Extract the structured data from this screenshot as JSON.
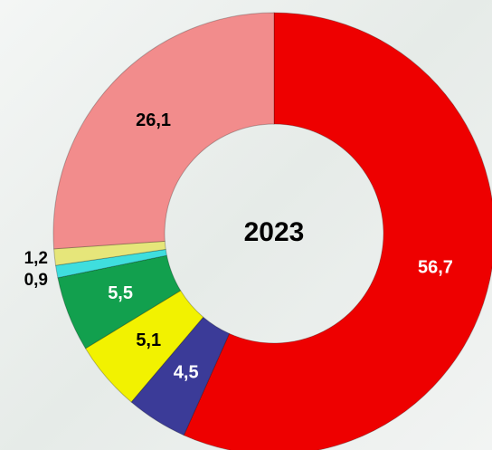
{
  "chart_data": {
    "type": "donut",
    "title": "2023",
    "categories": [
      null,
      null,
      null,
      null,
      null,
      null,
      null
    ],
    "values": [
      56.7,
      4.5,
      5.1,
      5.5,
      0.9,
      1.2,
      26.1
    ],
    "value_labels": [
      "56,7",
      "4,5",
      "5,1",
      "5,5",
      "0,9",
      "1,2",
      "26,1"
    ],
    "colors": [
      "#ee0000",
      "#3b3b98",
      "#f2f200",
      "#12a04e",
      "#3fdede",
      "#e6e67a",
      "#f28c8c"
    ]
  }
}
